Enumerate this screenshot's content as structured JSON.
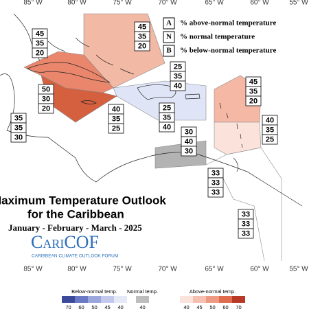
{
  "map": {
    "top_longitudes": [
      "85° W",
      "80° W",
      "75° W",
      "70° W",
      "65° W",
      "60° W",
      "55° W"
    ],
    "bottom_longitudes": [
      "85° W",
      "80° W",
      "75° W",
      "70° W",
      "65° W",
      "60° W",
      "55° W"
    ],
    "legend": [
      {
        "key": "A",
        "text": "% above-normal temperature"
      },
      {
        "key": "N",
        "text": "% normal temperature"
      },
      {
        "key": "B",
        "text": "% below-normal temperature"
      }
    ],
    "boxes": [
      {
        "values": [
          45,
          35,
          20
        ]
      },
      {
        "values": [
          45,
          35,
          20
        ]
      },
      {
        "values": [
          50,
          30,
          20
        ]
      },
      {
        "values": [
          25,
          35,
          40
        ]
      },
      {
        "values": [
          45,
          35,
          20
        ]
      },
      {
        "values": [
          35,
          35,
          30
        ]
      },
      {
        "values": [
          40,
          35,
          25
        ]
      },
      {
        "values": [
          25,
          35,
          40
        ]
      },
      {
        "values": [
          40,
          35,
          25
        ]
      },
      {
        "values": [
          30,
          40,
          30
        ]
      },
      {
        "values": [
          33,
          33,
          33
        ]
      },
      {
        "values": [
          33,
          33,
          33
        ]
      }
    ],
    "title": "Maximum Temperature Outlook",
    "subtitle": "for the Caribbean",
    "period": "January - February - March - 2025",
    "logo": "CariCOF",
    "logo_caption": "CARIBBEAN CLIMATE OUTLOOK FORUM",
    "colorbar": {
      "below": {
        "label": "Below-normal temp.",
        "ticks": [
          70,
          60,
          50,
          45,
          40
        ]
      },
      "normal": {
        "label": "Normal temp.",
        "ticks": [
          40
        ]
      },
      "above": {
        "label": "Above-normal temp.",
        "ticks": [
          40,
          45,
          50,
          60,
          70
        ]
      }
    }
  }
}
